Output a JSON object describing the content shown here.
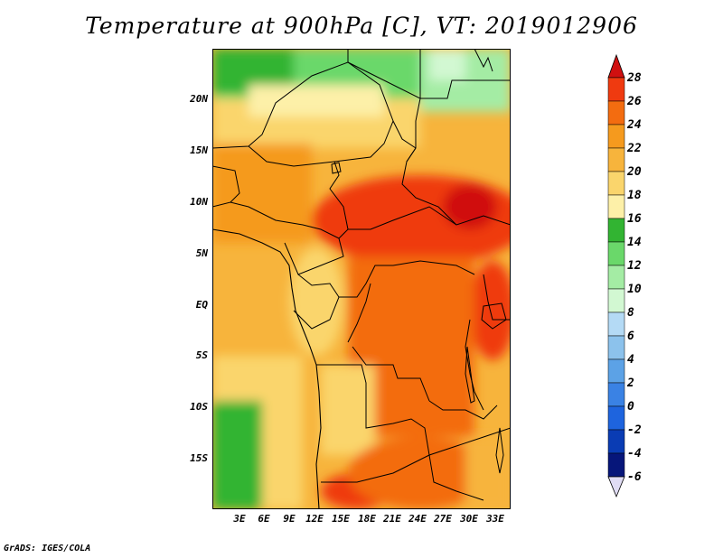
{
  "title": "Temperature at 900hPa [C], VT: 2019012906",
  "credit": "GrADS: IGES/COLA",
  "map": {
    "lat_labels": [
      "20N",
      "15N",
      "10N",
      "5N",
      "EQ",
      "5S",
      "10S",
      "15S"
    ],
    "lon_labels": [
      "3E",
      "6E",
      "9E",
      "12E",
      "15E",
      "18E",
      "21E",
      "24E",
      "27E",
      "30E",
      "33E"
    ]
  },
  "colorbar": {
    "levels": [
      "28",
      "26",
      "24",
      "22",
      "20",
      "18",
      "16",
      "14",
      "12",
      "10",
      "8",
      "6",
      "4",
      "2",
      "0",
      "-2",
      "-4",
      "-6"
    ],
    "colors": [
      "#d01010",
      "#ef3a10",
      "#f36c10",
      "#f59a1e",
      "#f7b43c",
      "#fad56c",
      "#fdf0a8",
      "#32b432",
      "#6ad86a",
      "#a4eca4",
      "#d2f8d2",
      "#b4daf5",
      "#8cc2ec",
      "#5ca2e6",
      "#3a82e4",
      "#1e64de",
      "#0a3cb4",
      "#06167a",
      "#e0dcf4"
    ]
  },
  "colors": {
    "sea": "#ffffff",
    "border": "#000000"
  }
}
